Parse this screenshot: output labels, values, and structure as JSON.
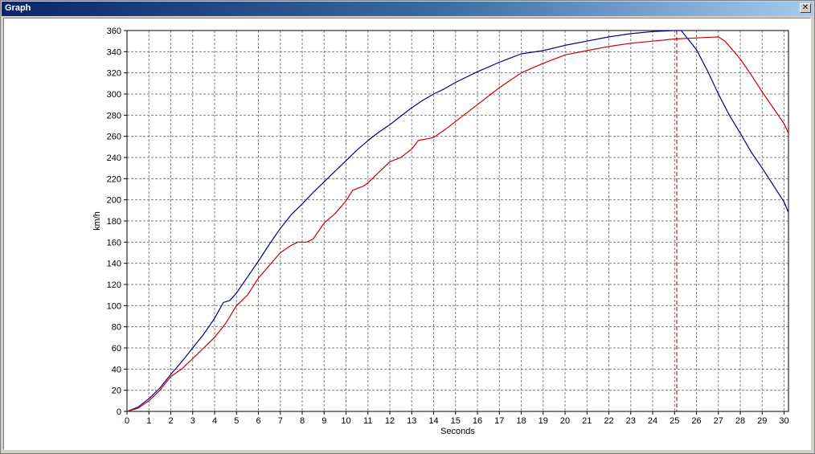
{
  "window": {
    "title": "Graph",
    "close_icon": "close-icon"
  },
  "chart_data": {
    "type": "line",
    "xlabel": "Seconds",
    "ylabel": "km/h",
    "xlim": [
      0,
      30.2
    ],
    "ylim": [
      0,
      360
    ],
    "x_ticks": [
      0,
      1,
      2,
      3,
      4,
      5,
      6,
      7,
      8,
      9,
      10,
      11,
      12,
      13,
      14,
      15,
      16,
      17,
      18,
      19,
      20,
      21,
      22,
      23,
      24,
      25,
      26,
      27,
      28,
      29,
      30
    ],
    "y_ticks": [
      0,
      20,
      40,
      60,
      80,
      100,
      120,
      140,
      160,
      180,
      200,
      220,
      240,
      260,
      280,
      300,
      320,
      340,
      360
    ],
    "grid": true,
    "cursor_x": 25.1,
    "cursor_color": "#8b0000",
    "series": [
      {
        "color": "#00008b",
        "points": [
          [
            0,
            0
          ],
          [
            0.5,
            4
          ],
          [
            1,
            12
          ],
          [
            1.5,
            22
          ],
          [
            2,
            35
          ],
          [
            2.5,
            47
          ],
          [
            3,
            60
          ],
          [
            3.5,
            73
          ],
          [
            4,
            88
          ],
          [
            4.4,
            103
          ],
          [
            4.7,
            105
          ],
          [
            5,
            112
          ],
          [
            5.5,
            127
          ],
          [
            6,
            142
          ],
          [
            6.5,
            158
          ],
          [
            7,
            173
          ],
          [
            7.5,
            186
          ],
          [
            8,
            196
          ],
          [
            8.5,
            207
          ],
          [
            9,
            217
          ],
          [
            9.5,
            227
          ],
          [
            10,
            237
          ],
          [
            10.5,
            247
          ],
          [
            11,
            256
          ],
          [
            11.5,
            264
          ],
          [
            12,
            271
          ],
          [
            12.5,
            279
          ],
          [
            13,
            287
          ],
          [
            13.5,
            294
          ],
          [
            14,
            300
          ],
          [
            14.5,
            305
          ],
          [
            15,
            311
          ],
          [
            16,
            321
          ],
          [
            17,
            330
          ],
          [
            18,
            338
          ],
          [
            19,
            341
          ],
          [
            20,
            346
          ],
          [
            21,
            350
          ],
          [
            22,
            354
          ],
          [
            23,
            357
          ],
          [
            24,
            359
          ],
          [
            25,
            360
          ],
          [
            25.3,
            360
          ],
          [
            26,
            342
          ],
          [
            26.5,
            322
          ],
          [
            27,
            300
          ],
          [
            27.5,
            280
          ],
          [
            28,
            263
          ],
          [
            28.5,
            245
          ],
          [
            29,
            230
          ],
          [
            29.5,
            214
          ],
          [
            30,
            198
          ],
          [
            30.2,
            188
          ]
        ]
      },
      {
        "color": "#cc0000",
        "points": [
          [
            0,
            0
          ],
          [
            0.5,
            3
          ],
          [
            1,
            10
          ],
          [
            1.5,
            20
          ],
          [
            2,
            33
          ],
          [
            2.5,
            40
          ],
          [
            3,
            50
          ],
          [
            3.5,
            60
          ],
          [
            4,
            70
          ],
          [
            4.5,
            83
          ],
          [
            5,
            100
          ],
          [
            5.5,
            110
          ],
          [
            6,
            126
          ],
          [
            6.5,
            138
          ],
          [
            7,
            150
          ],
          [
            7.5,
            157
          ],
          [
            7.8,
            160
          ],
          [
            8.2,
            160
          ],
          [
            8.5,
            163
          ],
          [
            9,
            178
          ],
          [
            9.5,
            187
          ],
          [
            10,
            199
          ],
          [
            10.3,
            209
          ],
          [
            10.8,
            213
          ],
          [
            11,
            216
          ],
          [
            11.5,
            226
          ],
          [
            12,
            236
          ],
          [
            12.5,
            240
          ],
          [
            13,
            248
          ],
          [
            13.3,
            256
          ],
          [
            13.8,
            258
          ],
          [
            14,
            259
          ],
          [
            14.5,
            266
          ],
          [
            15,
            274
          ],
          [
            15.5,
            282
          ],
          [
            16,
            290
          ],
          [
            17,
            306
          ],
          [
            18,
            320
          ],
          [
            19,
            329
          ],
          [
            20,
            337
          ],
          [
            21,
            341
          ],
          [
            22,
            345
          ],
          [
            23,
            348
          ],
          [
            24,
            350
          ],
          [
            25,
            352
          ],
          [
            26,
            353
          ],
          [
            27,
            354
          ],
          [
            27.3,
            350
          ],
          [
            28,
            333
          ],
          [
            28.5,
            318
          ],
          [
            29,
            302
          ],
          [
            29.5,
            287
          ],
          [
            30,
            272
          ],
          [
            30.2,
            263
          ]
        ]
      }
    ]
  }
}
